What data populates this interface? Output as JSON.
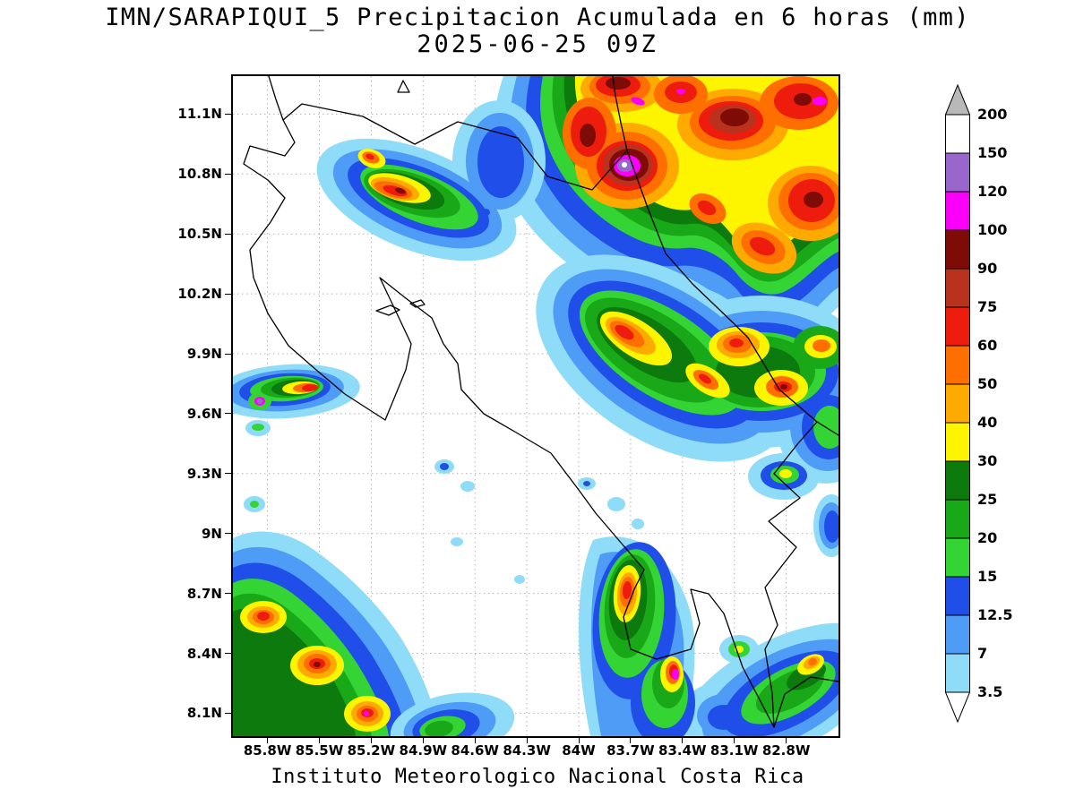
{
  "title": {
    "line1": "IMN/SARAPIQUI_5 Precipitacion Acumulada en 6 horas (mm)",
    "line2": "2025-06-25 09Z"
  },
  "footer": "Instituto Meteorologico Nacional Costa Rica",
  "axes": {
    "lat_labels": [
      "11.1N",
      "10.8N",
      "10.5N",
      "10.2N",
      "9.9N",
      "9.6N",
      "9.3N",
      "9N",
      "8.7N",
      "8.4N",
      "8.1N"
    ],
    "lon_labels": [
      "85.8W",
      "85.5W",
      "85.2W",
      "84.9W",
      "84.6W",
      "84.3W",
      "84W",
      "83.7W",
      "83.4W",
      "83.1W",
      "82.8W"
    ]
  },
  "colorbar": {
    "tick_labels": [
      "200",
      "150",
      "120",
      "100",
      "90",
      "75",
      "60",
      "50",
      "40",
      "30",
      "25",
      "20",
      "15",
      "12.5",
      "7",
      "3.5"
    ],
    "cell_colors_top_to_bottom": [
      "#ffffff",
      "#9966cc",
      "#fa00fa",
      "#7e0b05",
      "#b8321e",
      "#ee1c0c",
      "#ff6f00",
      "#ffaa00",
      "#fdf400",
      "#0c7a0c",
      "#18a818",
      "#35d435",
      "#1f4fe8",
      "#4e9cf5",
      "#8fdcf8"
    ],
    "top_arrow_color": "#b9b9b9",
    "bottom_arrow_color": "#ffffff"
  },
  "palette": {
    "3p5_7": "#8fdcf8",
    "7_12p5": "#4e9cf5",
    "12p5_15": "#1f4fe8",
    "15_20": "#35d435",
    "20_25": "#18a818",
    "25_30": "#0c7a0c",
    "30_40": "#fdf400",
    "40_50": "#ffaa00",
    "50_60": "#ff6f00",
    "60_75": "#ee1c0c",
    "75_90": "#b8321e",
    "90_100": "#7e0b05",
    "100_120": "#fa00fa",
    "120_150": "#9966cc",
    "150_200": "#ffffff",
    "gt200": "#b9b9b9"
  }
}
